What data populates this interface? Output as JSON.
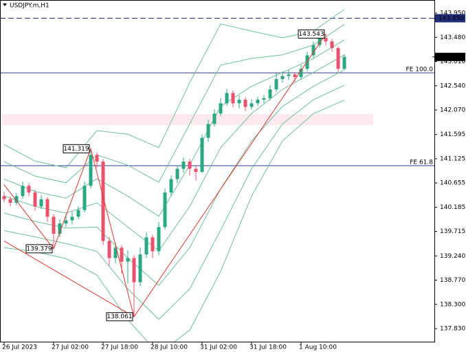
{
  "chart_data": {
    "type": "candlestick",
    "title": "USDJPY.m,H1",
    "categories": [
      "26 Jul 2023",
      null,
      null,
      null,
      null,
      null,
      null,
      null,
      "27 Jul 02:00",
      null,
      null,
      null,
      null,
      null,
      null,
      null,
      "27 Jul 18:00",
      null,
      null,
      null,
      null,
      null,
      null,
      null,
      "28 Jul 10:00",
      null,
      null,
      null,
      null,
      null,
      null,
      null,
      "31 Jul 02:00",
      null,
      null,
      null,
      null,
      null,
      null,
      null,
      "31 Jul 18:00",
      null,
      null,
      null,
      null,
      null,
      null,
      null,
      "1 Aug 10:00",
      null,
      null,
      null,
      null,
      null,
      null,
      null
    ],
    "open": [
      140.4,
      140.34,
      140.27,
      140.4,
      140.6,
      140.47,
      140.2,
      140.34,
      140.0,
      139.67,
      139.87,
      139.93,
      140.0,
      140.13,
      140.6,
      141.2,
      141.07,
      139.53,
      139.2,
      139.4,
      139.13,
      139.2,
      138.73,
      139.27,
      139.6,
      139.33,
      139.8,
      140.47,
      140.73,
      140.93,
      141.07,
      140.93,
      140.87,
      141.53,
      141.8,
      142.0,
      142.2,
      142.4,
      142.2,
      142.27,
      142.13,
      142.2,
      142.27,
      142.3,
      142.47,
      142.67,
      142.73,
      142.76,
      142.71,
      142.87,
      143.13,
      143.33,
      143.47,
      143.4,
      143.27,
      142.87
    ],
    "high": [
      140.48,
      140.4,
      140.46,
      140.68,
      140.65,
      140.52,
      140.42,
      140.38,
      140.05,
      139.95,
      140.05,
      140.1,
      140.2,
      140.68,
      141.319,
      141.25,
      141.12,
      139.6,
      139.5,
      139.45,
      139.35,
      139.25,
      139.4,
      139.7,
      139.65,
      139.9,
      140.55,
      140.8,
      141.0,
      141.15,
      141.12,
      141.0,
      141.6,
      141.88,
      142.08,
      142.3,
      142.48,
      142.45,
      142.35,
      142.32,
      142.28,
      142.33,
      142.36,
      142.55,
      142.78,
      142.82,
      142.85,
      142.8,
      142.95,
      143.2,
      143.4,
      143.52,
      143.543,
      143.45,
      143.3,
      143.15
    ],
    "low": [
      140.28,
      140.2,
      140.22,
      140.35,
      140.4,
      140.12,
      140.15,
      139.9,
      139.379,
      139.6,
      139.8,
      139.85,
      139.95,
      140.08,
      140.55,
      140.95,
      139.45,
      139.05,
      139.1,
      138.9,
      138.7,
      138.061,
      138.65,
      139.2,
      139.2,
      139.25,
      139.75,
      140.4,
      140.65,
      140.85,
      140.8,
      140.7,
      140.85,
      141.45,
      141.75,
      141.95,
      142.15,
      142.12,
      142.1,
      142.05,
      142.08,
      142.15,
      142.2,
      142.25,
      142.42,
      142.6,
      142.65,
      142.62,
      142.66,
      142.82,
      143.08,
      143.28,
      143.32,
      143.2,
      142.8,
      142.84
    ],
    "close": [
      140.34,
      140.27,
      140.4,
      140.6,
      140.47,
      140.2,
      140.34,
      140.0,
      139.67,
      139.87,
      139.93,
      140.0,
      140.13,
      140.6,
      141.2,
      141.07,
      139.53,
      139.2,
      139.4,
      139.13,
      139.2,
      138.73,
      139.27,
      139.6,
      139.33,
      139.8,
      140.47,
      140.73,
      140.93,
      141.07,
      140.93,
      140.87,
      141.53,
      141.8,
      142.0,
      142.2,
      142.4,
      142.2,
      142.27,
      142.13,
      142.2,
      142.27,
      142.3,
      142.47,
      142.67,
      142.73,
      142.76,
      142.71,
      142.87,
      143.13,
      143.33,
      143.47,
      143.4,
      143.27,
      142.87,
      143.1
    ],
    "up_color": "#2aa884",
    "down_color": "#e9526c",
    "ylim": [
      137.577,
      144.177
    ],
    "yticks": [
      {
        "value": 137.83,
        "label": "137.830"
      },
      {
        "value": 138.3,
        "label": "138.300"
      },
      {
        "value": 138.77,
        "label": "138.770"
      },
      {
        "value": 139.24,
        "label": "139.240"
      },
      139.715,
      140.185,
      140.655,
      141.125,
      141.595,
      {
        "value": 142.07,
        "label": "142.070"
      },
      {
        "value": 142.54,
        "label": "142.540"
      },
      {
        "value": 143.01,
        "label": "143.010"
      },
      {
        "value": 143.48,
        "label": "143.480"
      },
      {
        "value": 143.95,
        "label": "143.950"
      }
    ],
    "bands": {
      "color": "#6cc196",
      "x": [
        0,
        5,
        10,
        15,
        20,
        25,
        30,
        35,
        40,
        45,
        50,
        55
      ],
      "series": [
        {
          "values": [
            140.4,
            140.2,
            140.07,
            140.27,
            139.8,
            139.34,
            140.2,
            141.34,
            142.0,
            142.47,
            142.8,
            143.14
          ]
        },
        {
          "values": [
            140.73,
            140.49,
            140.36,
            140.74,
            140.4,
            140.01,
            141.0,
            142.14,
            142.53,
            142.8,
            143.07,
            143.43
          ]
        },
        {
          "values": [
            141.07,
            140.79,
            140.66,
            141.2,
            141.0,
            140.67,
            141.8,
            142.94,
            143.07,
            143.14,
            143.33,
            143.73
          ]
        },
        {
          "values": [
            141.4,
            141.08,
            140.95,
            141.67,
            141.6,
            141.34,
            142.6,
            143.74,
            143.6,
            143.47,
            143.6,
            144.02
          ]
        },
        {
          "values": [
            140.07,
            139.91,
            139.78,
            139.8,
            139.2,
            138.67,
            139.4,
            140.54,
            141.47,
            142.14,
            142.53,
            142.85
          ]
        },
        {
          "values": [
            139.73,
            139.61,
            139.48,
            139.33,
            138.6,
            138.01,
            138.6,
            139.74,
            140.93,
            141.8,
            142.27,
            142.55
          ]
        },
        {
          "values": [
            139.4,
            139.32,
            139.19,
            138.87,
            138.0,
            137.34,
            137.8,
            138.94,
            140.4,
            141.47,
            142.0,
            142.26
          ]
        }
      ]
    },
    "zigzag": {
      "color": "#e0342c",
      "start": {
        "x": 0,
        "value": 140.62
      },
      "x": [
        8,
        14,
        21,
        52
      ],
      "values": [
        139.379,
        141.319,
        138.061,
        143.543
      ]
    },
    "fibo_base": {
      "color": "#e0342c",
      "x": [
        0,
        21
      ],
      "values": [
        139.53,
        138.061
      ]
    },
    "levels": [
      {
        "name": "FE 100.0",
        "value": 142.79,
        "color": "#2b3a8f"
      },
      {
        "name": "FE 61.8",
        "value": 140.99,
        "color": "#2b3a8f"
      }
    ],
    "target": {
      "value": 143.85,
      "label": "143.850",
      "color": "#1f2d7a"
    },
    "bid": {
      "value": 143.1,
      "label": "143.100",
      "color": "#000000"
    },
    "zone": {
      "low": 141.78,
      "high": 141.99,
      "color": "#fde9ee"
    }
  }
}
